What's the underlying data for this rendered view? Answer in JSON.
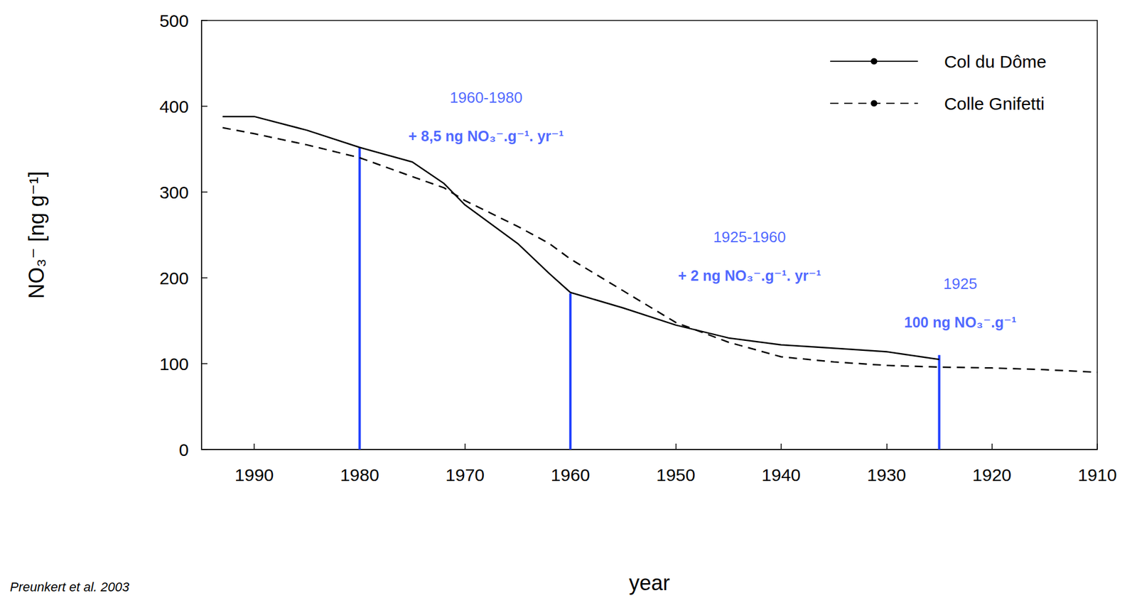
{
  "chart_data": {
    "type": "line",
    "x_label": "year",
    "y_label": "NO₃⁻ [ng g⁻¹]",
    "source": "Preunkert et al. 2003",
    "x": [
      1993,
      1990,
      1985,
      1980,
      1975,
      1972,
      1970,
      1965,
      1962,
      1960,
      1955,
      1950,
      1945,
      1940,
      1935,
      1930,
      1925,
      1920,
      1915,
      1910
    ],
    "series": [
      {
        "name": "Col du Dôme",
        "color": "#000000",
        "line_style": "solid",
        "values": [
          388,
          388,
          372,
          352,
          335,
          310,
          285,
          240,
          205,
          183,
          165,
          145,
          130,
          122,
          118,
          114,
          105,
          null,
          null,
          null
        ]
      },
      {
        "name": "Colle Gnifetti",
        "color": "#000000",
        "line_style": "dashed",
        "values": [
          375,
          368,
          355,
          340,
          318,
          305,
          290,
          260,
          240,
          222,
          185,
          148,
          125,
          108,
          102,
          98,
          96,
          95,
          93,
          90
        ]
      }
    ],
    "reference_lines": {
      "color": "#1f3fff",
      "x": [
        1980,
        1960,
        1925
      ],
      "y": [
        352,
        182,
        110
      ]
    },
    "annotations": [
      {
        "period": "1960-1980",
        "rate": "+ 8,5 ng NO₃⁻.g⁻¹. yr⁻¹",
        "x": 1968,
        "y": 388,
        "color": "#1f3fff"
      },
      {
        "period": "1925-1960",
        "rate": "+ 2 ng NO₃⁻.g⁻¹. yr⁻¹",
        "x": 1943,
        "y": 225,
        "color": "#1f3fff"
      },
      {
        "period": "1925",
        "rate": "100 ng NO₃⁻.g⁻¹",
        "x": 1923,
        "y": 171,
        "color": "#1f3fff"
      }
    ],
    "xlim": [
      1995,
      1910
    ],
    "xticks": [
      1990,
      1980,
      1970,
      1960,
      1950,
      1940,
      1930,
      1920,
      1910
    ],
    "ylim": [
      0,
      500
    ],
    "yticks": [
      0,
      100,
      200,
      300,
      400,
      500
    ],
    "legend": "upper right",
    "grid": false
  }
}
